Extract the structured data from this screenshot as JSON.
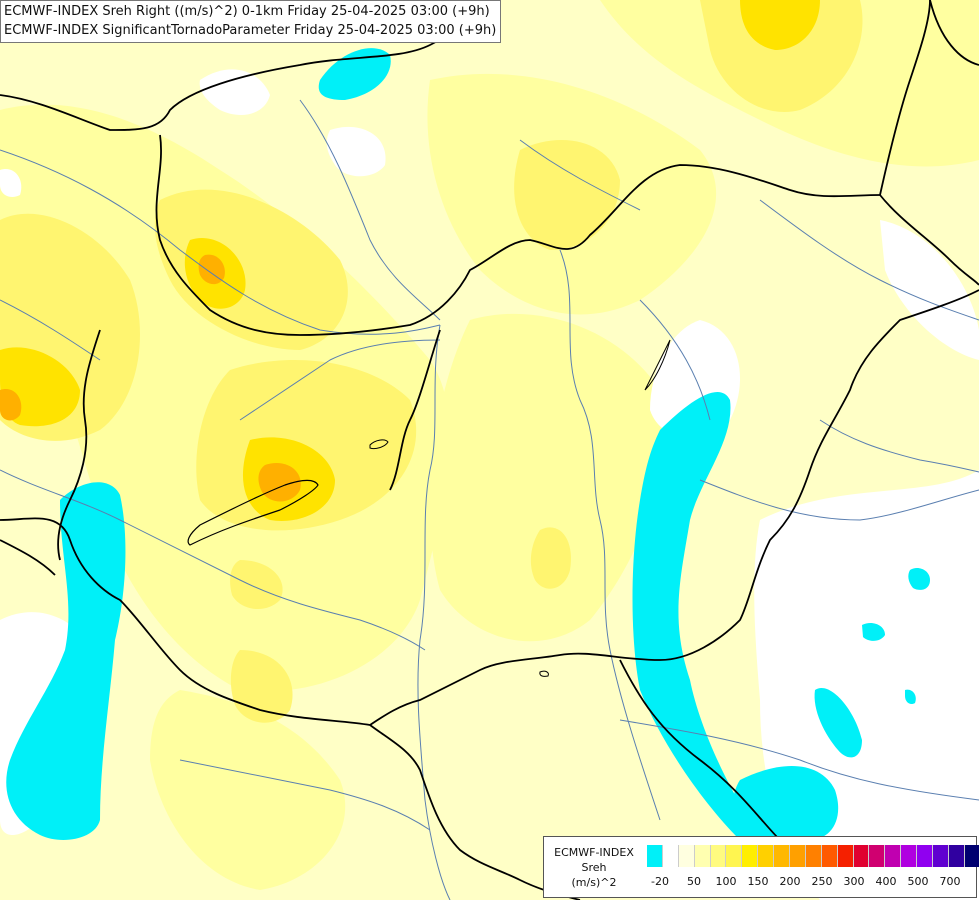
{
  "header": {
    "line1": "ECMWF-INDEX Sreh Right ((m/s)^2) 0-1km Friday 25-04-2025 03:00 (+9h)",
    "line2": "ECMWF-INDEX SignificantTornadoParameter Friday 25-04-2025 03:00 (+9h)"
  },
  "colors": {
    "background": "#ffffc6",
    "pale_yellow": "#ffffa0",
    "yellow": "#fff570",
    "gold": "#ffe300",
    "orange": "#ffb000",
    "cyan": "#00f0f8",
    "white_area": "#ffffff",
    "borders": "#000000",
    "rivers": "#5a7fb0"
  },
  "legend": {
    "title": "ECMWF-INDEX",
    "variable": "Sreh",
    "unit": "(m/s)^2",
    "swatches": [
      "#00f0f8",
      "#ffffff",
      "#ffffe0",
      "#ffffb0",
      "#fffb80",
      "#fff550",
      "#ffee00",
      "#ffd000",
      "#ffb800",
      "#ffa000",
      "#ff8000",
      "#ff5a00",
      "#f52000",
      "#e00030",
      "#d00070",
      "#c000b0",
      "#b000e0",
      "#9000f0",
      "#6000d0",
      "#3000a0",
      "#000070"
    ],
    "ticks": [
      "-20",
      "50",
      "100",
      "150",
      "200",
      "250",
      "300",
      "400",
      "500",
      "700"
    ]
  }
}
